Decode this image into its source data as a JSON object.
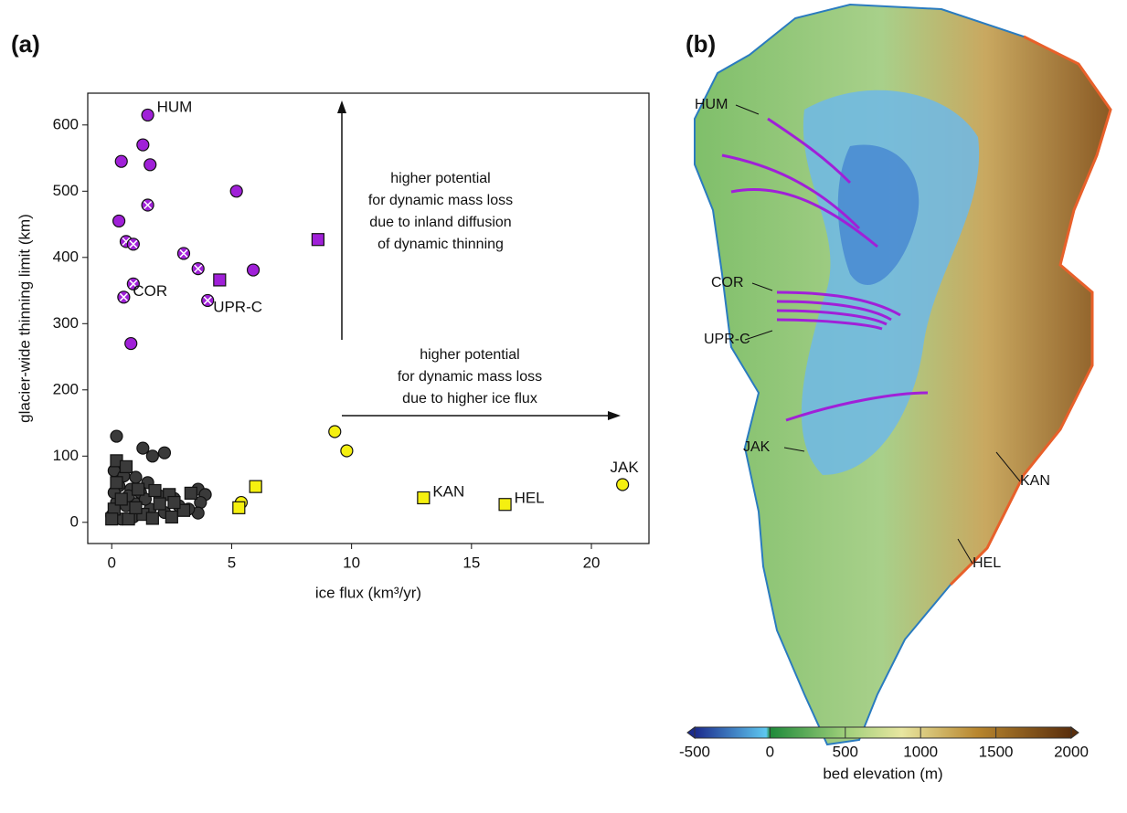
{
  "chart_data": [
    {
      "type": "scatter",
      "panel_label": "(a)",
      "x_label": "ice flux (km³/yr)",
      "y_label": "glacier-wide thinning limit (km)",
      "xlim": [
        -1,
        22.4
      ],
      "ylim": [
        -32,
        648
      ],
      "xticks": [
        0,
        5,
        10,
        15,
        20
      ],
      "yticks": [
        0,
        100,
        200,
        300,
        400,
        500,
        600
      ],
      "grid": false,
      "series": [
        {
          "color": "#a020d8",
          "marker": "circle",
          "x": [
            1.5,
            1.3,
            0.4,
            1.6,
            0.3,
            5.2,
            5.9,
            0.8
          ],
          "values": [
            615,
            570,
            545,
            540,
            455,
            500,
            381,
            270
          ]
        },
        {
          "color": "#a020d8",
          "marker": "crossed-circle",
          "x": [
            1.5,
            0.6,
            0.9,
            3.0,
            3.6,
            0.9,
            0.5,
            4.0
          ],
          "values": [
            479,
            424,
            420,
            406,
            383,
            360,
            340,
            335
          ]
        },
        {
          "color": "#a020d8",
          "marker": "square",
          "x": [
            8.6,
            4.5
          ],
          "values": [
            427,
            366
          ]
        },
        {
          "color": "#3a3a3a",
          "marker": "circle",
          "x": [
            0.2,
            1.3,
            1.7,
            2.2,
            0.1,
            0.5,
            1.0,
            1.5,
            0.3,
            0.8,
            1.2,
            2.0,
            2.6,
            0.2,
            0.6,
            1.0,
            1.6,
            2.2,
            3.6,
            3.9,
            3.7,
            3.6,
            0.0,
            0.4,
            0.9,
            1.4,
            0.7,
            2.8,
            3.2,
            0.1
          ],
          "values": [
            130,
            112,
            100,
            105,
            78,
            70,
            68,
            60,
            55,
            50,
            45,
            40,
            36,
            30,
            25,
            28,
            20,
            15,
            50,
            42,
            30,
            14,
            10,
            5,
            8,
            35,
            40,
            25,
            20,
            45
          ]
        },
        {
          "color": "#3a3a3a",
          "marker": "square",
          "x": [
            0.2,
            0.2,
            0.6,
            1.1,
            1.8,
            2.4,
            3.3,
            0.1,
            0.7,
            1.3,
            2.0,
            2.5,
            3.0,
            0.4,
            1.7,
            2.6,
            0.0,
            1.0
          ],
          "values": [
            93,
            60,
            84,
            50,
            48,
            42,
            44,
            20,
            5,
            12,
            28,
            8,
            18,
            35,
            6,
            30,
            5,
            22
          ]
        },
        {
          "color": "#f5f010",
          "marker": "circle",
          "x": [
            9.3,
            9.8,
            5.4,
            21.3
          ],
          "values": [
            137,
            108,
            30,
            57
          ]
        },
        {
          "color": "#f5f010",
          "marker": "square",
          "x": [
            6.0,
            5.3,
            13.0,
            16.4
          ],
          "values": [
            54,
            22,
            37,
            27
          ]
        }
      ],
      "annotations": [
        {
          "text": "HUM",
          "x": 1.5,
          "y": 615
        },
        {
          "text": "COR",
          "x": 0.5,
          "y": 340
        },
        {
          "text": "UPR-C",
          "x": 4.0,
          "y": 335
        },
        {
          "text": "KAN",
          "x": 13.0,
          "y": 37
        },
        {
          "text": "HEL",
          "x": 16.4,
          "y": 27
        },
        {
          "text": "JAK",
          "x": 21.3,
          "y": 57
        }
      ],
      "arrow_notes": [
        [
          "higher potential",
          "for dynamic mass loss",
          "due to inland diffusion",
          "of dynamic thinning"
        ],
        [
          "higher potential",
          "for dynamic mass loss",
          "due to higher ice flux"
        ]
      ]
    },
    {
      "type": "map",
      "panel_label": "(b)",
      "map_labels": [
        "HUM",
        "COR",
        "UPR-C",
        "JAK",
        "KAN",
        "HEL"
      ],
      "colorbar_label": "bed elevation (m)",
      "clim": [
        -500,
        2000
      ],
      "colorbar_ticks": [
        -500,
        0,
        500,
        1000,
        1500,
        2000
      ]
    }
  ]
}
